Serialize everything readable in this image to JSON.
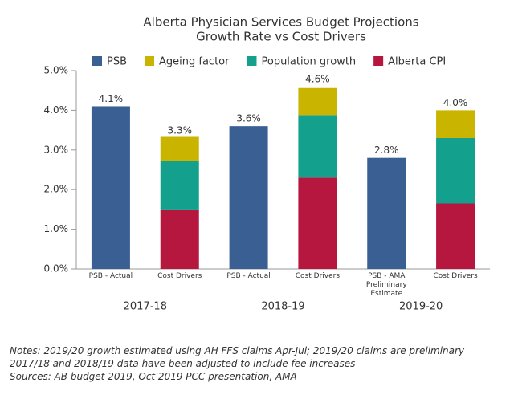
{
  "chart_data": {
    "type": "stacked_bar",
    "title": "Alberta Physician Services Budget Projections",
    "subtitle": "Growth Rate vs Cost Drivers",
    "categories": [
      "PSB - Actual",
      "Cost Drivers",
      "PSB - Actual",
      "Cost Drivers",
      "PSB - AMA\nPreliminary\nEstimate",
      "Cost Drivers"
    ],
    "group_labels": [
      "2017-18",
      "2018-19",
      "2019-20"
    ],
    "series": [
      {
        "name": "PSB",
        "color": "#3a5f93",
        "values": [
          4.1,
          null,
          3.6,
          null,
          2.8,
          null
        ]
      },
      {
        "name": "Alberta CPI",
        "color": "#b5173f",
        "values": [
          null,
          1.5,
          null,
          2.3,
          null,
          1.65
        ]
      },
      {
        "name": "Population growth",
        "color": "#13a08c",
        "values": [
          null,
          1.23,
          null,
          1.58,
          null,
          1.65
        ]
      },
      {
        "name": "Ageing factor",
        "color": "#c9b400",
        "values": [
          null,
          0.6,
          null,
          0.7,
          null,
          0.7
        ]
      }
    ],
    "legend_order": [
      0,
      3,
      2,
      1
    ],
    "totals": {
      "values": [
        4.1,
        3.3,
        3.6,
        4.6,
        2.8,
        4.0
      ],
      "value_labels": [
        "4.1%",
        "3.3%",
        "3.6%",
        "4.6%",
        "2.8%",
        "4.0%"
      ]
    },
    "ylim": [
      0,
      5
    ],
    "yticks": [
      {
        "value": 0,
        "label": "0.0%"
      },
      {
        "value": 1,
        "label": "1.0%"
      },
      {
        "value": 2,
        "label": "2.0%"
      },
      {
        "value": 3,
        "label": "3.0%"
      },
      {
        "value": 4,
        "label": "4.0%"
      },
      {
        "value": 5,
        "label": "5.0%"
      }
    ],
    "grid": false,
    "notes": [
      "Notes: 2019/20 growth estimated using AH FFS claims Apr-Jul; 2019/20 claims are preliminary",
      "2017/18 and 2018/19 data have been adjusted to include fee increases",
      "Sources: AB budget 2019, Oct 2019 PCC presentation, AMA"
    ]
  }
}
